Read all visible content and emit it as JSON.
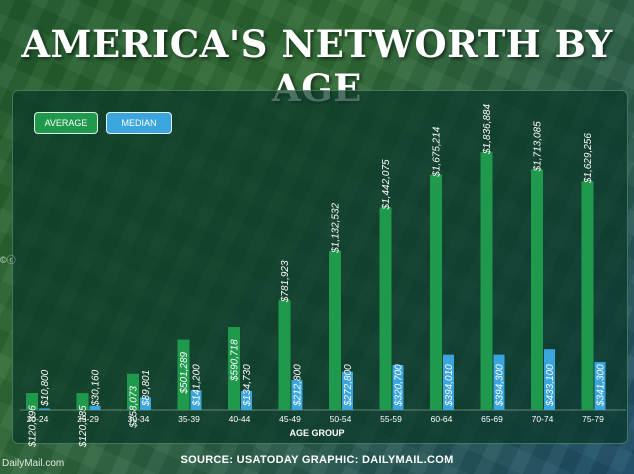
{
  "title": "AMERICA'S NETWORTH BY AGE",
  "legend": {
    "average": "AVERAGE",
    "median": "MEDIAN"
  },
  "source": "SOURCE: USATODAY   GRAPHIC: DAILYMAIL.COM",
  "watermark": "DailyMail.com",
  "watermark_top": "©ⓒ",
  "colors": {
    "average": "#1f9a4c",
    "median": "#3aa6dd"
  },
  "chart_data": {
    "type": "bar",
    "title": "AMERICA'S NETWORTH BY AGE",
    "xlabel": "AGE GROUP",
    "ylabel": "",
    "categories": [
      "20-24",
      "25-29",
      "30-34",
      "35-39",
      "40-44",
      "45-49",
      "50-54",
      "55-59",
      "60-64",
      "65-69",
      "70-74",
      "75-79"
    ],
    "series": [
      {
        "name": "AVERAGE",
        "values": [
          120896,
          120185,
          258073,
          501289,
          590718,
          781923,
          1132532,
          1442075,
          1675214,
          1836884,
          1713085,
          1629256
        ],
        "labels": [
          "$120,896",
          "$120,185",
          "$258,073",
          "$501,289",
          "$590,718",
          "$781,923",
          "$1,132,532",
          "$1,442,075",
          "$1,675,214",
          "$1,836,884",
          "$1,713,085",
          "$1,629,256"
        ]
      },
      {
        "name": "MEDIAN",
        "values": [
          10800,
          30160,
          89801,
          141200,
          134730,
          212800,
          272800,
          320700,
          394010,
          394300,
          433100,
          341300
        ],
        "labels": [
          "$10,800",
          "$30,160",
          "$89,801",
          "$141,200",
          "$134,730",
          "$212,800",
          "$272,800",
          "$320,700",
          "$394,010",
          "$394,300",
          "$433,100",
          "$341,300"
        ]
      }
    ],
    "ylim": [
      0,
      1836884
    ],
    "grid": false,
    "legend_position": "top-left"
  }
}
